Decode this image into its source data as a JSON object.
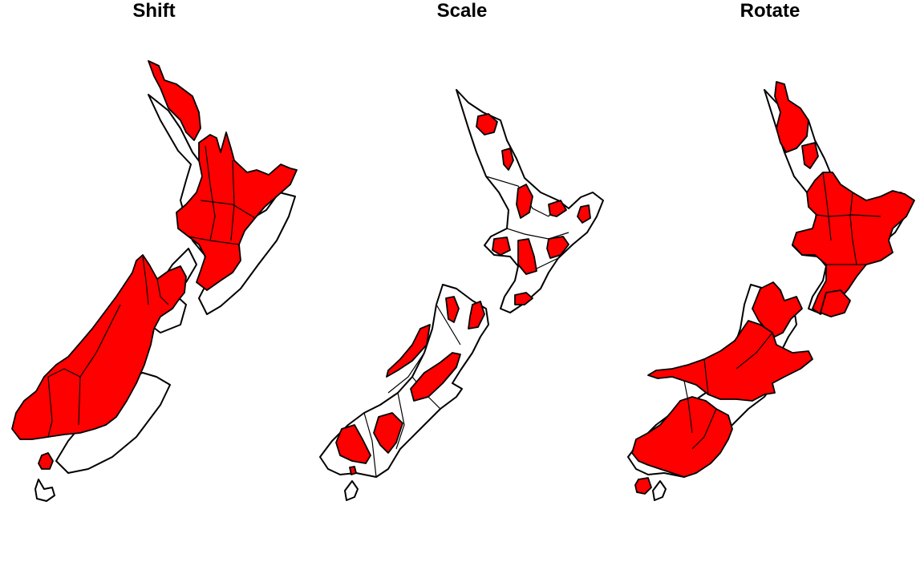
{
  "panels": [
    {
      "title": "Shift"
    },
    {
      "title": "Scale"
    },
    {
      "title": "Rotate"
    }
  ],
  "colors": {
    "region_fill": "#ff0000",
    "outline": "#000000",
    "background": "#ffffff"
  }
}
